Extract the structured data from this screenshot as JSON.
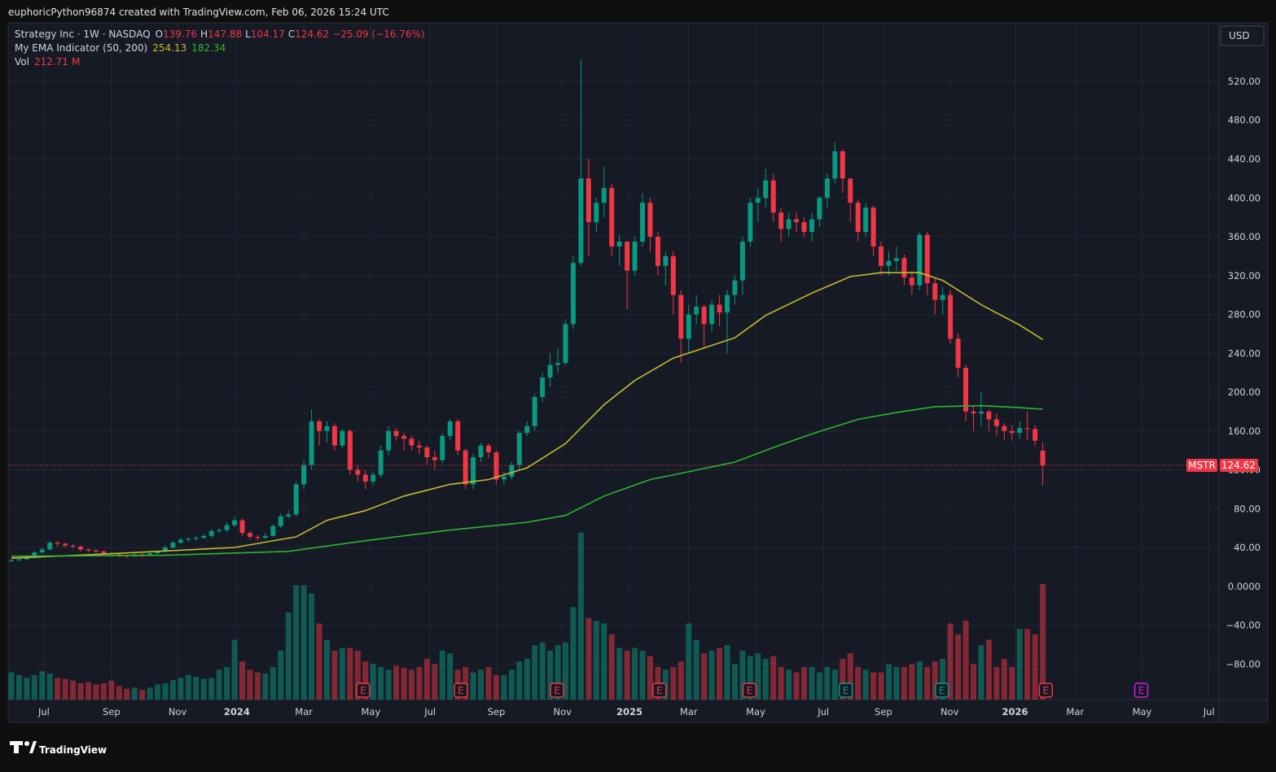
{
  "header": "euphoricPython96874 created with TradingView.com, Feb 06, 2026 15:24 UTC",
  "brand": "TradingView",
  "currency": "USD",
  "chart_data": {
    "type": "candlestick",
    "symbol": "Strategy Inc · 1W · NASDAQ",
    "ticker": "MSTR",
    "ohlc_letters": [
      "O",
      "H",
      "L",
      "C"
    ],
    "change": "−25.09 (−16.76%)",
    "indicator": "My EMA Indicator (50, 200)",
    "volume_name": "Vol",
    "volume_unit": "M",
    "up_color": "#089981",
    "down_color": "#f23645",
    "open": [
      26,
      27,
      28,
      30,
      35,
      38,
      45,
      44,
      42,
      41,
      38,
      37,
      36,
      34,
      33,
      32,
      31,
      33,
      32,
      34,
      36,
      40,
      45,
      48,
      49,
      50,
      52,
      57,
      58,
      63,
      68,
      55,
      51,
      50,
      52,
      62,
      72,
      74,
      105,
      125,
      170,
      160,
      165,
      145,
      160,
      120,
      115,
      108,
      115,
      140,
      160,
      155,
      152,
      145,
      143,
      133,
      130,
      155,
      170,
      140,
      105,
      133,
      145,
      138,
      110,
      113,
      125,
      158,
      165,
      195,
      215,
      228,
      230,
      270,
      333,
      420,
      375,
      395,
      410,
      350,
      355,
      325,
      355,
      395,
      360,
      330,
      340,
      300,
      255,
      280,
      288,
      270,
      290,
      282,
      300,
      315,
      355,
      395,
      400,
      418,
      385,
      368,
      378,
      375,
      365,
      378,
      400,
      420,
      448,
      420,
      395,
      365,
      390,
      350,
      330,
      335,
      338,
      318,
      310,
      362,
      312,
      295,
      300,
      255,
      225,
      180,
      178,
      180,
      172,
      165,
      160,
      158,
      163,
      162,
      139.76
    ],
    "high": [
      28,
      29,
      31,
      36,
      40,
      47,
      47,
      45,
      43,
      42,
      39,
      38,
      37,
      35,
      34,
      33,
      34,
      34,
      35,
      37,
      42,
      47,
      50,
      51,
      52,
      54,
      59,
      60,
      66,
      72,
      70,
      57,
      53,
      55,
      64,
      75,
      78,
      108,
      130,
      182,
      172,
      170,
      168,
      162,
      162,
      125,
      120,
      118,
      145,
      165,
      163,
      158,
      155,
      150,
      145,
      140,
      158,
      172,
      172,
      142,
      136,
      148,
      147,
      140,
      118,
      128,
      160,
      170,
      198,
      220,
      240,
      245,
      275,
      340,
      543,
      440,
      400,
      432,
      415,
      362,
      355,
      360,
      405,
      400,
      365,
      345,
      345,
      305,
      290,
      300,
      290,
      295,
      300,
      305,
      320,
      360,
      400,
      410,
      430,
      425,
      390,
      385,
      385,
      380,
      385,
      402,
      425,
      457,
      450,
      420,
      398,
      395,
      392,
      355,
      345,
      350,
      342,
      325,
      365,
      365,
      318,
      308,
      305,
      260,
      228,
      185,
      200,
      182,
      178,
      168,
      166,
      170,
      180,
      166,
      147.88
    ],
    "low": [
      25,
      26,
      27,
      29,
      34,
      37,
      41,
      40,
      39,
      36,
      35,
      34,
      32,
      31,
      30,
      29,
      30,
      30,
      31,
      33,
      35,
      39,
      44,
      46,
      47,
      49,
      50,
      55,
      56,
      61,
      52,
      48,
      47,
      49,
      51,
      60,
      70,
      72,
      100,
      120,
      145,
      148,
      140,
      142,
      115,
      108,
      100,
      104,
      112,
      135,
      150,
      140,
      140,
      136,
      125,
      120,
      127,
      150,
      135,
      100,
      100,
      128,
      132,
      105,
      105,
      110,
      120,
      155,
      160,
      190,
      205,
      220,
      228,
      265,
      330,
      340,
      365,
      380,
      340,
      330,
      285,
      320,
      350,
      345,
      320,
      310,
      280,
      230,
      240,
      270,
      245,
      262,
      268,
      240,
      290,
      300,
      350,
      375,
      390,
      375,
      355,
      360,
      365,
      360,
      355,
      370,
      390,
      415,
      405,
      375,
      355,
      360,
      340,
      320,
      320,
      325,
      310,
      300,
      305,
      300,
      280,
      280,
      250,
      215,
      170,
      160,
      165,
      160,
      155,
      150,
      150,
      152,
      150,
      145,
      104.17
    ],
    "close": [
      27,
      28,
      30,
      35,
      38,
      45,
      44,
      42,
      41,
      38,
      37,
      36,
      34,
      33,
      32,
      31,
      33,
      32,
      34,
      36,
      40,
      45,
      48,
      49,
      50,
      52,
      57,
      58,
      63,
      68,
      55,
      51,
      50,
      52,
      62,
      72,
      74,
      105,
      125,
      170,
      160,
      165,
      145,
      160,
      120,
      115,
      108,
      115,
      140,
      160,
      155,
      152,
      145,
      143,
      133,
      130,
      155,
      170,
      140,
      105,
      133,
      145,
      138,
      110,
      113,
      125,
      158,
      165,
      195,
      215,
      228,
      230,
      270,
      333,
      420,
      375,
      395,
      410,
      350,
      355,
      325,
      355,
      395,
      360,
      330,
      340,
      300,
      255,
      280,
      288,
      270,
      290,
      282,
      300,
      315,
      355,
      395,
      400,
      418,
      385,
      368,
      378,
      375,
      365,
      378,
      400,
      420,
      448,
      420,
      395,
      365,
      390,
      350,
      330,
      335,
      338,
      318,
      310,
      362,
      312,
      295,
      300,
      255,
      225,
      180,
      178,
      180,
      172,
      165,
      160,
      158,
      163,
      162,
      150,
      124.62
    ],
    "volume": [
      50,
      45,
      40,
      45,
      52,
      48,
      40,
      38,
      35,
      30,
      32,
      28,
      30,
      35,
      25,
      20,
      22,
      18,
      22,
      28,
      30,
      36,
      40,
      45,
      42,
      38,
      40,
      55,
      60,
      110,
      70,
      55,
      50,
      48,
      60,
      90,
      160,
      210,
      210,
      195,
      140,
      110,
      90,
      95,
      95,
      90,
      70,
      65,
      60,
      55,
      62,
      58,
      55,
      60,
      75,
      65,
      90,
      85,
      55,
      60,
      50,
      55,
      60,
      45,
      45,
      55,
      70,
      75,
      100,
      105,
      90,
      100,
      105,
      170,
      307,
      150,
      145,
      140,
      120,
      95,
      90,
      95,
      90,
      80,
      60,
      55,
      60,
      70,
      140,
      110,
      85,
      90,
      95,
      100,
      65,
      90,
      80,
      85,
      75,
      80,
      60,
      55,
      50,
      60,
      60,
      50,
      60,
      55,
      75,
      85,
      60,
      55,
      50,
      50,
      65,
      60,
      60,
      65,
      70,
      60,
      70,
      75,
      140,
      120,
      145,
      65,
      100,
      110,
      60,
      75,
      60,
      130,
      130,
      120,
      212.71
    ],
    "ema50": {
      "color": "#c2bd2c",
      "x": [
        0,
        14,
        29,
        37,
        41,
        46,
        51,
        57,
        62,
        67,
        72,
        77,
        81,
        86,
        94,
        98,
        104,
        109,
        113,
        118,
        121,
        126,
        131,
        134
      ],
      "values": [
        29,
        34,
        40,
        51,
        68,
        78,
        93,
        105,
        110,
        122,
        147,
        187,
        212,
        235,
        256,
        279,
        302,
        319,
        323,
        323,
        315,
        290,
        269,
        254.13
      ]
    },
    "ema200": {
      "color": "#2fb52f",
      "x": [
        0,
        20,
        36,
        46,
        57,
        67,
        72,
        77,
        83,
        88,
        94,
        99,
        104,
        110,
        115,
        120,
        126,
        131,
        134
      ],
      "values": [
        31,
        32,
        36,
        47,
        58,
        66,
        73,
        93,
        110,
        118,
        128,
        143,
        157,
        172,
        179,
        185,
        186,
        184,
        182.34
      ]
    },
    "earnings": {
      "label": "E",
      "x": [
        45.7,
        58.4,
        70.9,
        84.2,
        95.9,
        108.4,
        120.9,
        134.4,
        146.8
      ],
      "colors": [
        "#f23645",
        "#f23645",
        "#f23645",
        "#f23645",
        "#f23645",
        "#089981",
        "#089981",
        "#f23645",
        "#d01fd8"
      ]
    },
    "xlim": [
      -0.42,
      156.9
    ],
    "xticks": [
      {
        "value": 4.23,
        "label": "Jul"
      },
      {
        "value": 13,
        "label": "Sep"
      },
      {
        "value": 21.6,
        "label": "Nov"
      },
      {
        "value": 29.3,
        "label": "2024"
      },
      {
        "value": 38,
        "label": "Mar"
      },
      {
        "value": 46.7,
        "label": "May"
      },
      {
        "value": 54.4,
        "label": "Jul"
      },
      {
        "value": 63,
        "label": "Sep"
      },
      {
        "value": 71.6,
        "label": "Nov"
      },
      {
        "value": 80.3,
        "label": "2025"
      },
      {
        "value": 88,
        "label": "Mar"
      },
      {
        "value": 96.7,
        "label": "May"
      },
      {
        "value": 105.5,
        "label": "Jul"
      },
      {
        "value": 113.3,
        "label": "Sep"
      },
      {
        "value": 121.9,
        "label": "Nov"
      },
      {
        "value": 130.4,
        "label": "2026"
      },
      {
        "value": 138.2,
        "label": "Mar"
      },
      {
        "value": 146.9,
        "label": "May"
      },
      {
        "value": 155.6,
        "label": "Jul"
      }
    ],
    "ylim": [
      -116.6,
      580.3
    ],
    "yticks": [
      {
        "value": -80,
        "label": "−80.00"
      },
      {
        "value": -40,
        "label": "−40.00"
      },
      {
        "value": 0,
        "label": "0.0000"
      },
      {
        "value": 40,
        "label": "40.00"
      },
      {
        "value": 80,
        "label": "80.00"
      },
      {
        "value": 120,
        "label": "120.00"
      },
      {
        "value": 160,
        "label": "160.00"
      },
      {
        "value": 200,
        "label": "200.00"
      },
      {
        "value": 240,
        "label": "240.00"
      },
      {
        "value": 280,
        "label": "280.00"
      },
      {
        "value": 320,
        "label": "320.00"
      },
      {
        "value": 360,
        "label": "360.00"
      },
      {
        "value": 400,
        "label": "400.00"
      },
      {
        "value": 440,
        "label": "440.00"
      },
      {
        "value": 480,
        "label": "480.00"
      },
      {
        "value": 520,
        "label": "520.00"
      }
    ],
    "vlim": [
      0,
      320
    ],
    "grid": true
  }
}
